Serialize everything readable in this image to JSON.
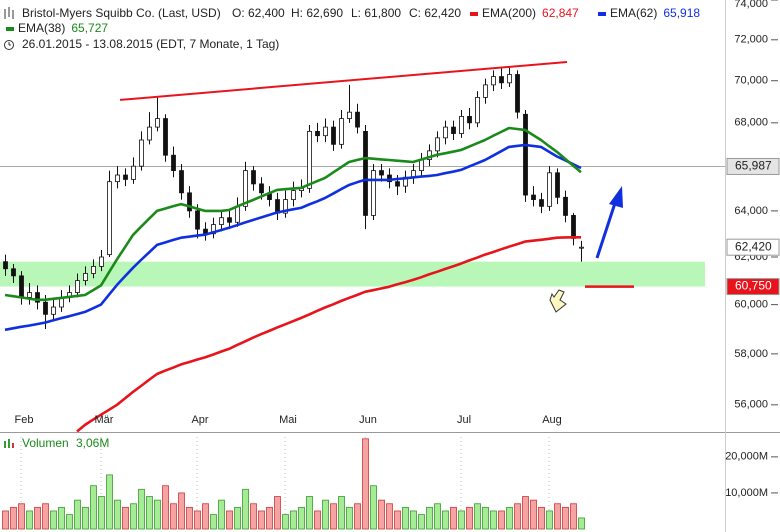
{
  "chart_data": {
    "type": "candlestick",
    "title": "Bristol-Myers Squibb Co. (Last, USD)",
    "ohlc_labels": [
      "O: 62,400",
      "H: 62,690",
      "L: 61,800",
      "C: 62,420"
    ],
    "subtitle": "26.01.2015 - 13.08.2015 (EDT, 7 Monate, 1 Tag)",
    "log_scale": true,
    "ylim": [
      55000,
      74000
    ],
    "yticks": [
      {
        "value": 56000,
        "label": "56,000"
      },
      {
        "value": 58000,
        "label": "58,000"
      },
      {
        "value": 60000,
        "label": "60,000"
      },
      {
        "value": 62000,
        "label": "62,000"
      },
      {
        "value": 64000,
        "label": "64,000"
      },
      {
        "value": 66000,
        "label": "66,000"
      },
      {
        "value": 68000,
        "label": "68,000"
      },
      {
        "value": 70000,
        "label": "70,000"
      },
      {
        "value": 72000,
        "label": "72,000"
      },
      {
        "value": 74000,
        "label": "74,000"
      }
    ],
    "categories": [
      null,
      null,
      "Feb",
      null,
      null,
      null,
      null,
      null,
      null,
      null,
      null,
      null,
      "Mär",
      null,
      null,
      null,
      null,
      null,
      null,
      null,
      null,
      null,
      null,
      null,
      "Apr",
      null,
      null,
      null,
      null,
      null,
      null,
      null,
      null,
      null,
      null,
      "Mai",
      null,
      null,
      null,
      null,
      null,
      null,
      null,
      null,
      null,
      "Jun",
      null,
      null,
      null,
      null,
      null,
      null,
      null,
      null,
      null,
      null,
      null,
      "Jul",
      null,
      null,
      null,
      null,
      null,
      null,
      null,
      null,
      null,
      null,
      "Aug",
      null,
      null,
      null,
      null
    ],
    "candles": {
      "up_color": "#ffffff",
      "down_color": "#111111",
      "outline": "#111111",
      "open": [
        61800,
        61500,
        61200,
        60300,
        60500,
        60100,
        59600,
        59900,
        60300,
        60500,
        61000,
        61300,
        61600,
        62100,
        65300,
        65600,
        65400,
        66000,
        67200,
        67800,
        68200,
        66500,
        65800,
        64800,
        64000,
        63200,
        63000,
        63400,
        63700,
        63500,
        64200,
        65800,
        65200,
        64800,
        64500,
        63900,
        64500,
        64900,
        65000,
        67600,
        67400,
        67800,
        67000,
        68200,
        68500,
        67600,
        63800,
        65800,
        65600,
        65300,
        65100,
        65500,
        65800,
        66300,
        66700,
        67300,
        67800,
        67500,
        68300,
        68000,
        69200,
        69800,
        70200,
        69900,
        70300,
        68400,
        64700,
        64500,
        64200,
        65700,
        64600,
        63800,
        62400
      ],
      "high": [
        62100,
        61700,
        61400,
        60900,
        60800,
        60400,
        60200,
        60600,
        60800,
        61300,
        61600,
        61900,
        62300,
        65800,
        66000,
        65900,
        66400,
        67600,
        68500,
        69200,
        68400,
        66900,
        66100,
        65100,
        64300,
        63500,
        63700,
        64000,
        64000,
        64600,
        66200,
        66000,
        65500,
        65100,
        64800,
        64900,
        65300,
        65400,
        67900,
        68000,
        68200,
        68100,
        68600,
        69800,
        68900,
        67900,
        66100,
        66100,
        65900,
        65600,
        65800,
        66100,
        66600,
        67000,
        67600,
        68100,
        68100,
        68600,
        68700,
        69500,
        70100,
        70500,
        70600,
        70700,
        70500,
        68600,
        65100,
        64800,
        66000,
        65900,
        64900,
        63900,
        62690
      ],
      "low": [
        61200,
        60900,
        60000,
        60000,
        59800,
        59000,
        59400,
        59700,
        60100,
        60300,
        60800,
        61100,
        61400,
        62000,
        65000,
        65100,
        65200,
        65800,
        67000,
        67600,
        66200,
        65500,
        64500,
        63700,
        62800,
        62700,
        62800,
        63100,
        63200,
        63300,
        64000,
        64900,
        64500,
        64200,
        63600,
        63700,
        64200,
        64600,
        64800,
        67100,
        67100,
        66700,
        66800,
        68000,
        67500,
        63200,
        63600,
        65300,
        65000,
        64700,
        64800,
        65200,
        65500,
        66000,
        66400,
        67000,
        67200,
        67300,
        67700,
        67800,
        68900,
        69500,
        69600,
        69700,
        68200,
        64400,
        64200,
        63900,
        64000,
        64300,
        63500,
        62500,
        61800
      ],
      "close": [
        61500,
        61200,
        60300,
        60500,
        60100,
        59600,
        59900,
        60300,
        60500,
        61000,
        61300,
        61600,
        62000,
        65300,
        65600,
        65400,
        66000,
        67200,
        67800,
        68200,
        66500,
        65800,
        64800,
        64000,
        63200,
        63000,
        63400,
        63700,
        63500,
        64200,
        65800,
        65200,
        64800,
        64500,
        63900,
        64500,
        64900,
        65000,
        67600,
        67400,
        67800,
        67000,
        68200,
        68500,
        67800,
        63800,
        65800,
        65600,
        65300,
        65100,
        65500,
        65800,
        66300,
        66700,
        67300,
        67800,
        67500,
        68300,
        68000,
        69200,
        69800,
        70200,
        69900,
        70300,
        68500,
        64700,
        64500,
        64200,
        65700,
        64600,
        63800,
        62800,
        62420
      ]
    },
    "series": [
      {
        "name": "EMA(200)",
        "value_label": "62,847",
        "color": "#e8141c",
        "values": [
          null,
          null,
          null,
          null,
          null,
          null,
          null,
          null,
          null,
          54980,
          55230,
          55430,
          55620,
          55810,
          56000,
          56250,
          56500,
          56730,
          56970,
          57200,
          57330,
          57450,
          57580,
          57670,
          57770,
          57860,
          57970,
          58090,
          58200,
          58350,
          58500,
          58650,
          58790,
          58920,
          59060,
          59190,
          59320,
          59450,
          59590,
          59740,
          59880,
          60010,
          60150,
          60280,
          60400,
          60530,
          60600,
          60670,
          60740,
          60840,
          60930,
          61030,
          61140,
          61260,
          61370,
          61490,
          61600,
          61720,
          61850,
          61970,
          62100,
          62210,
          62330,
          62440,
          62550,
          62660,
          62700,
          62740,
          62780,
          62830,
          62840,
          62845,
          62847
        ]
      },
      {
        "name": "EMA(62)",
        "value_label": "65,918",
        "color": "#1030e0",
        "values": [
          58970,
          59030,
          59090,
          59140,
          59200,
          59260,
          59350,
          59440,
          59520,
          59610,
          59700,
          59850,
          60000,
          60410,
          60820,
          61180,
          61540,
          61870,
          62190,
          62520,
          62620,
          62730,
          62830,
          62870,
          62920,
          62960,
          63060,
          63160,
          63260,
          63370,
          63490,
          63600,
          63710,
          63820,
          63930,
          64000,
          64070,
          64130,
          64280,
          64420,
          64570,
          64760,
          64960,
          65150,
          65270,
          65380,
          65380,
          65380,
          65380,
          65420,
          65450,
          65490,
          65530,
          65560,
          65600,
          65680,
          65750,
          65830,
          65980,
          66130,
          66280,
          66480,
          66680,
          66880,
          66930,
          66970,
          66930,
          66880,
          66660,
          66440,
          66270,
          66090,
          65918
        ]
      },
      {
        "name": "EMA(38)",
        "value_label": "65,727",
        "color": "#1a8a1a",
        "values": [
          60400,
          60350,
          60300,
          60250,
          60200,
          60200,
          60240,
          60280,
          60320,
          60360,
          60400,
          60600,
          60800,
          61350,
          61900,
          62420,
          62950,
          63300,
          63650,
          64000,
          64100,
          64200,
          64300,
          64200,
          64100,
          64000,
          64000,
          64000,
          64040,
          64190,
          64340,
          64480,
          64630,
          64780,
          64930,
          64960,
          64990,
          65020,
          65170,
          65320,
          65470,
          65710,
          65950,
          66190,
          66280,
          66370,
          66340,
          66310,
          66280,
          66250,
          66220,
          66190,
          66300,
          66410,
          66520,
          66590,
          66660,
          66740,
          66890,
          67050,
          67200,
          67390,
          67570,
          67760,
          67710,
          67670,
          67430,
          67200,
          66920,
          66650,
          66340,
          66030,
          65727
        ]
      }
    ],
    "zone": {
      "low": 60750,
      "high": 61800,
      "color": "#b9f7b9"
    },
    "trend_line": {
      "values": [
        69080,
        70910
      ],
      "color": "#e8141c"
    },
    "support_line": {
      "value": 60750,
      "color": "#e8141c"
    },
    "price_labels": [
      {
        "value": 65987,
        "label": "65,987",
        "fill": "#e4e4e4",
        "text_color": "#222222",
        "line": true
      },
      {
        "value": 62420,
        "label": "62,420",
        "fill": "#ffffff",
        "text_color": "#222222",
        "line": false
      },
      {
        "value": 60750,
        "label": "60,750",
        "fill": "#e8141c",
        "text_color": "#ffffff",
        "line": false
      }
    ],
    "volume": {
      "name": "Volumen",
      "value_label": "3,06M",
      "up_color": "#a6ec96",
      "down_color": "#f6a3a3",
      "up_outline": "#3a9a30",
      "down_outline": "#c83a3a",
      "ylim": [
        0,
        25.5
      ],
      "yticks": [
        {
          "value": 10,
          "label": "10,000M"
        },
        {
          "value": 20,
          "label": "20,000M"
        }
      ],
      "values": [
        5,
        6,
        7,
        5,
        6,
        7,
        5,
        6,
        4,
        8,
        6,
        12,
        9,
        15,
        8,
        6,
        7,
        11,
        9,
        8,
        12,
        7,
        10,
        6,
        5,
        7,
        4,
        8,
        5,
        6,
        11,
        7,
        5,
        6,
        9,
        4,
        5,
        6,
        9,
        5,
        8,
        7,
        9,
        6,
        7,
        25,
        12,
        8,
        7,
        5,
        6,
        5,
        4,
        6,
        7,
        5,
        6,
        5,
        6,
        7,
        6,
        5,
        5,
        6,
        7,
        9,
        8,
        6,
        5,
        7,
        6,
        7,
        3.06
      ]
    }
  }
}
